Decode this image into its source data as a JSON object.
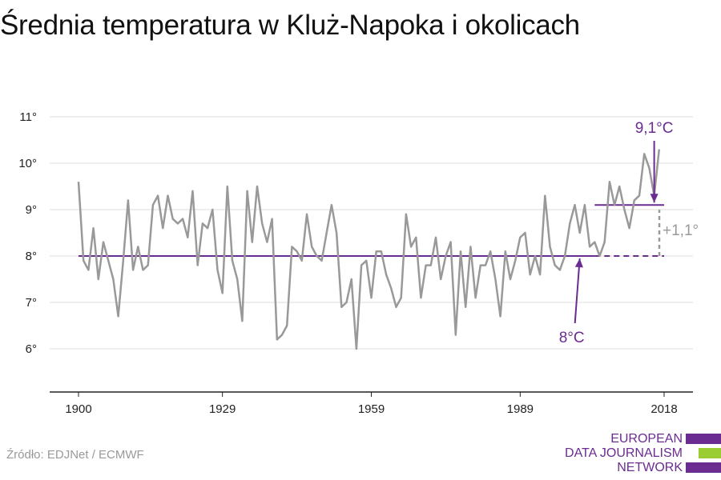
{
  "title": "Średnia temperatura w Kluż-Napoka i okolicach",
  "source": "Źródło: EDJNet / ECMWF",
  "logo": {
    "lines": [
      "EUROPEAN",
      "DATA JOURNALISM",
      "NETWORK"
    ],
    "colors": {
      "purple": "#6a2c91",
      "green": "#9acd32"
    }
  },
  "colors": {
    "series": "#999999",
    "reference": "#6a2c91",
    "difference": "#999999",
    "grid": "#dddddd",
    "axis": "#222222"
  },
  "chart_data": {
    "type": "line",
    "title": "Średnia temperatura w Kluż-Napoka i okolicach",
    "xlabel": "",
    "ylabel": "",
    "xlim": [
      1900,
      2018
    ],
    "ylim": [
      6,
      11
    ],
    "x_ticks": [
      1900,
      1929,
      1959,
      1989,
      2018
    ],
    "x_tick_labels": [
      "1900",
      "1929",
      "1959",
      "1989",
      "2018"
    ],
    "y_ticks": [
      6,
      7,
      8,
      9,
      10,
      11
    ],
    "y_tick_labels": [
      "6°",
      "7°",
      "8°",
      "9°",
      "10°",
      "11°"
    ],
    "grid": true,
    "series": [
      {
        "x_start": 1900,
        "x_end": 2018,
        "values": [
          9.6,
          7.9,
          7.7,
          8.6,
          7.5,
          8.3,
          7.9,
          7.5,
          6.7,
          7.9,
          9.2,
          7.7,
          8.2,
          7.7,
          7.8,
          9.1,
          9.3,
          8.6,
          9.3,
          8.8,
          8.7,
          8.8,
          8.4,
          9.4,
          7.8,
          8.7,
          8.6,
          9.0,
          7.7,
          7.2,
          9.5,
          7.9,
          7.5,
          6.6,
          9.4,
          8.3,
          9.5,
          8.7,
          8.3,
          8.8,
          6.2,
          6.3,
          6.5,
          8.2,
          8.1,
          7.9,
          8.9,
          8.2,
          8.0,
          7.9,
          8.5,
          9.1,
          8.5,
          6.9,
          7.0,
          7.5,
          6.0,
          7.8,
          7.9,
          7.1,
          8.1,
          8.1,
          7.6,
          7.3,
          6.9,
          7.1,
          8.9,
          8.2,
          8.4,
          7.1,
          7.8,
          7.8,
          8.4,
          7.5,
          8.0,
          8.3,
          6.3,
          8.1,
          6.9,
          8.2,
          7.1,
          7.8,
          7.8,
          8.1,
          7.5,
          6.7,
          8.1,
          7.5,
          7.9,
          8.4,
          8.5,
          7.6,
          8.0,
          7.6,
          9.3,
          8.2,
          7.8,
          7.7,
          8.0,
          8.7,
          9.1,
          8.5,
          9.1,
          8.2,
          8.3,
          8.0,
          8.3,
          9.6,
          9.1,
          9.5,
          9.0,
          8.6,
          9.2,
          9.3,
          10.2,
          9.9,
          9.3,
          10.3
        ]
      }
    ],
    "reference_lines": [
      {
        "value": 8.0,
        "x_start": 1900,
        "x_end": 2018,
        "solid_to": 2004,
        "label": "8°C",
        "label_year": 2001
      },
      {
        "value": 9.1,
        "x_start": 2004,
        "x_end": 2018,
        "label": "9,1°C",
        "label_year": 2016
      }
    ],
    "difference": {
      "year": 2018,
      "from": 8.0,
      "to": 9.1,
      "label": "+1,1°"
    }
  }
}
